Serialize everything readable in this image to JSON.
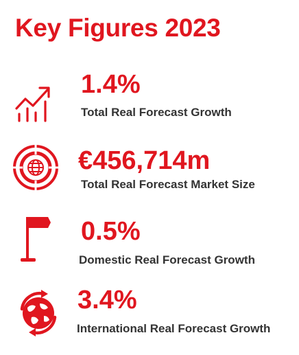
{
  "title": "Key Figures 2023",
  "accent_color": "#e0161f",
  "text_color": "#333333",
  "figures": [
    {
      "icon": "growth-chart-icon",
      "value": "1.4%",
      "label": "Total Real Forecast Growth"
    },
    {
      "icon": "globe-market-icon",
      "value": "€456,714m",
      "label": "Total Real Forecast Market Size"
    },
    {
      "icon": "flag-icon",
      "value": "0.5%",
      "label": "Domestic Real Forecast Growth"
    },
    {
      "icon": "international-globe-icon",
      "value": "3.4%",
      "label": "International Real Forecast Growth"
    }
  ]
}
